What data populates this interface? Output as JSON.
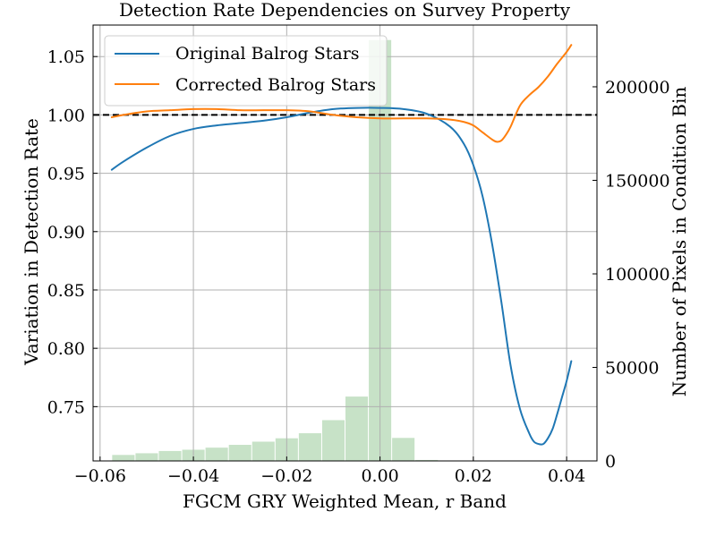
{
  "chart_data": {
    "type": "line",
    "title": "Detection Rate Dependencies on Survey Property",
    "xlabel": "FGCM GRY Weighted Mean, r Band",
    "ylabel": "Variation in Detection Rate",
    "ylabel_right": "Number of Pixels in Condition Bin",
    "xlim": [
      -0.0615,
      0.0465
    ],
    "ylim": [
      0.7035,
      1.077
    ],
    "ylim_right": [
      0,
      233000
    ],
    "x_ticks": [
      -0.06,
      -0.04,
      -0.02,
      0.0,
      0.02,
      0.04
    ],
    "x_tick_labels": [
      "−0.06",
      "−0.04",
      "−0.02",
      "0.00",
      "0.02",
      "0.04"
    ],
    "y_ticks": [
      0.75,
      0.8,
      0.85,
      0.9,
      0.95,
      1.0,
      1.05
    ],
    "y_tick_labels": [
      "0.75",
      "0.80",
      "0.85",
      "0.90",
      "0.95",
      "1.00",
      "1.05"
    ],
    "y2_ticks": [
      0,
      50000,
      100000,
      150000,
      200000
    ],
    "y2_tick_labels": [
      "0",
      "50000",
      "100000",
      "150000",
      "200000"
    ],
    "grid": true,
    "reference_line": {
      "y": 1.0,
      "style": "dashed",
      "color": "#000000"
    },
    "legend": {
      "placement": "top-left"
    },
    "series": [
      {
        "name": "Original Balrog Stars",
        "color": "#1f77b4",
        "x": [
          -0.0575,
          -0.055,
          -0.05,
          -0.045,
          -0.04,
          -0.035,
          -0.03,
          -0.025,
          -0.02,
          -0.015,
          -0.01,
          -0.005,
          0.0,
          0.005,
          0.01,
          0.015,
          0.018,
          0.02,
          0.022,
          0.024,
          0.026,
          0.028,
          0.03,
          0.032,
          0.033,
          0.034,
          0.035,
          0.036,
          0.037,
          0.038,
          0.039,
          0.04,
          0.041
        ],
        "y": [
          0.953,
          0.96,
          0.972,
          0.982,
          0.988,
          0.991,
          0.993,
          0.995,
          0.998,
          1.002,
          1.005,
          1.006,
          1.006,
          1.005,
          1.001,
          0.99,
          0.975,
          0.957,
          0.93,
          0.89,
          0.84,
          0.785,
          0.748,
          0.727,
          0.72,
          0.718,
          0.718,
          0.723,
          0.731,
          0.744,
          0.758,
          0.772,
          0.789
        ]
      },
      {
        "name": "Corrected Balrog Stars",
        "color": "#ff7f0e",
        "x": [
          -0.0575,
          -0.055,
          -0.05,
          -0.045,
          -0.04,
          -0.035,
          -0.03,
          -0.025,
          -0.02,
          -0.015,
          -0.01,
          -0.005,
          0.0,
          0.005,
          0.01,
          0.015,
          0.018,
          0.02,
          0.022,
          0.024,
          0.025,
          0.026,
          0.027,
          0.028,
          0.03,
          0.032,
          0.034,
          0.036,
          0.038,
          0.04,
          0.041
        ],
        "y": [
          0.998,
          1.0,
          1.003,
          1.004,
          1.005,
          1.005,
          1.004,
          1.004,
          1.004,
          1.003,
          1.0,
          0.998,
          0.997,
          0.997,
          0.997,
          0.996,
          0.994,
          0.991,
          0.985,
          0.979,
          0.977,
          0.978,
          0.983,
          0.99,
          1.008,
          1.017,
          1.024,
          1.033,
          1.044,
          1.054,
          1.06
        ]
      }
    ],
    "histogram": {
      "color": "#c7e2c7",
      "bin_start": -0.0575,
      "bin_width": 0.005,
      "counts": [
        3200,
        4100,
        5300,
        6000,
        7100,
        8600,
        10300,
        12100,
        14800,
        21800,
        34400,
        225000,
        12300,
        500,
        0,
        0,
        0,
        0,
        0,
        0
      ]
    }
  }
}
